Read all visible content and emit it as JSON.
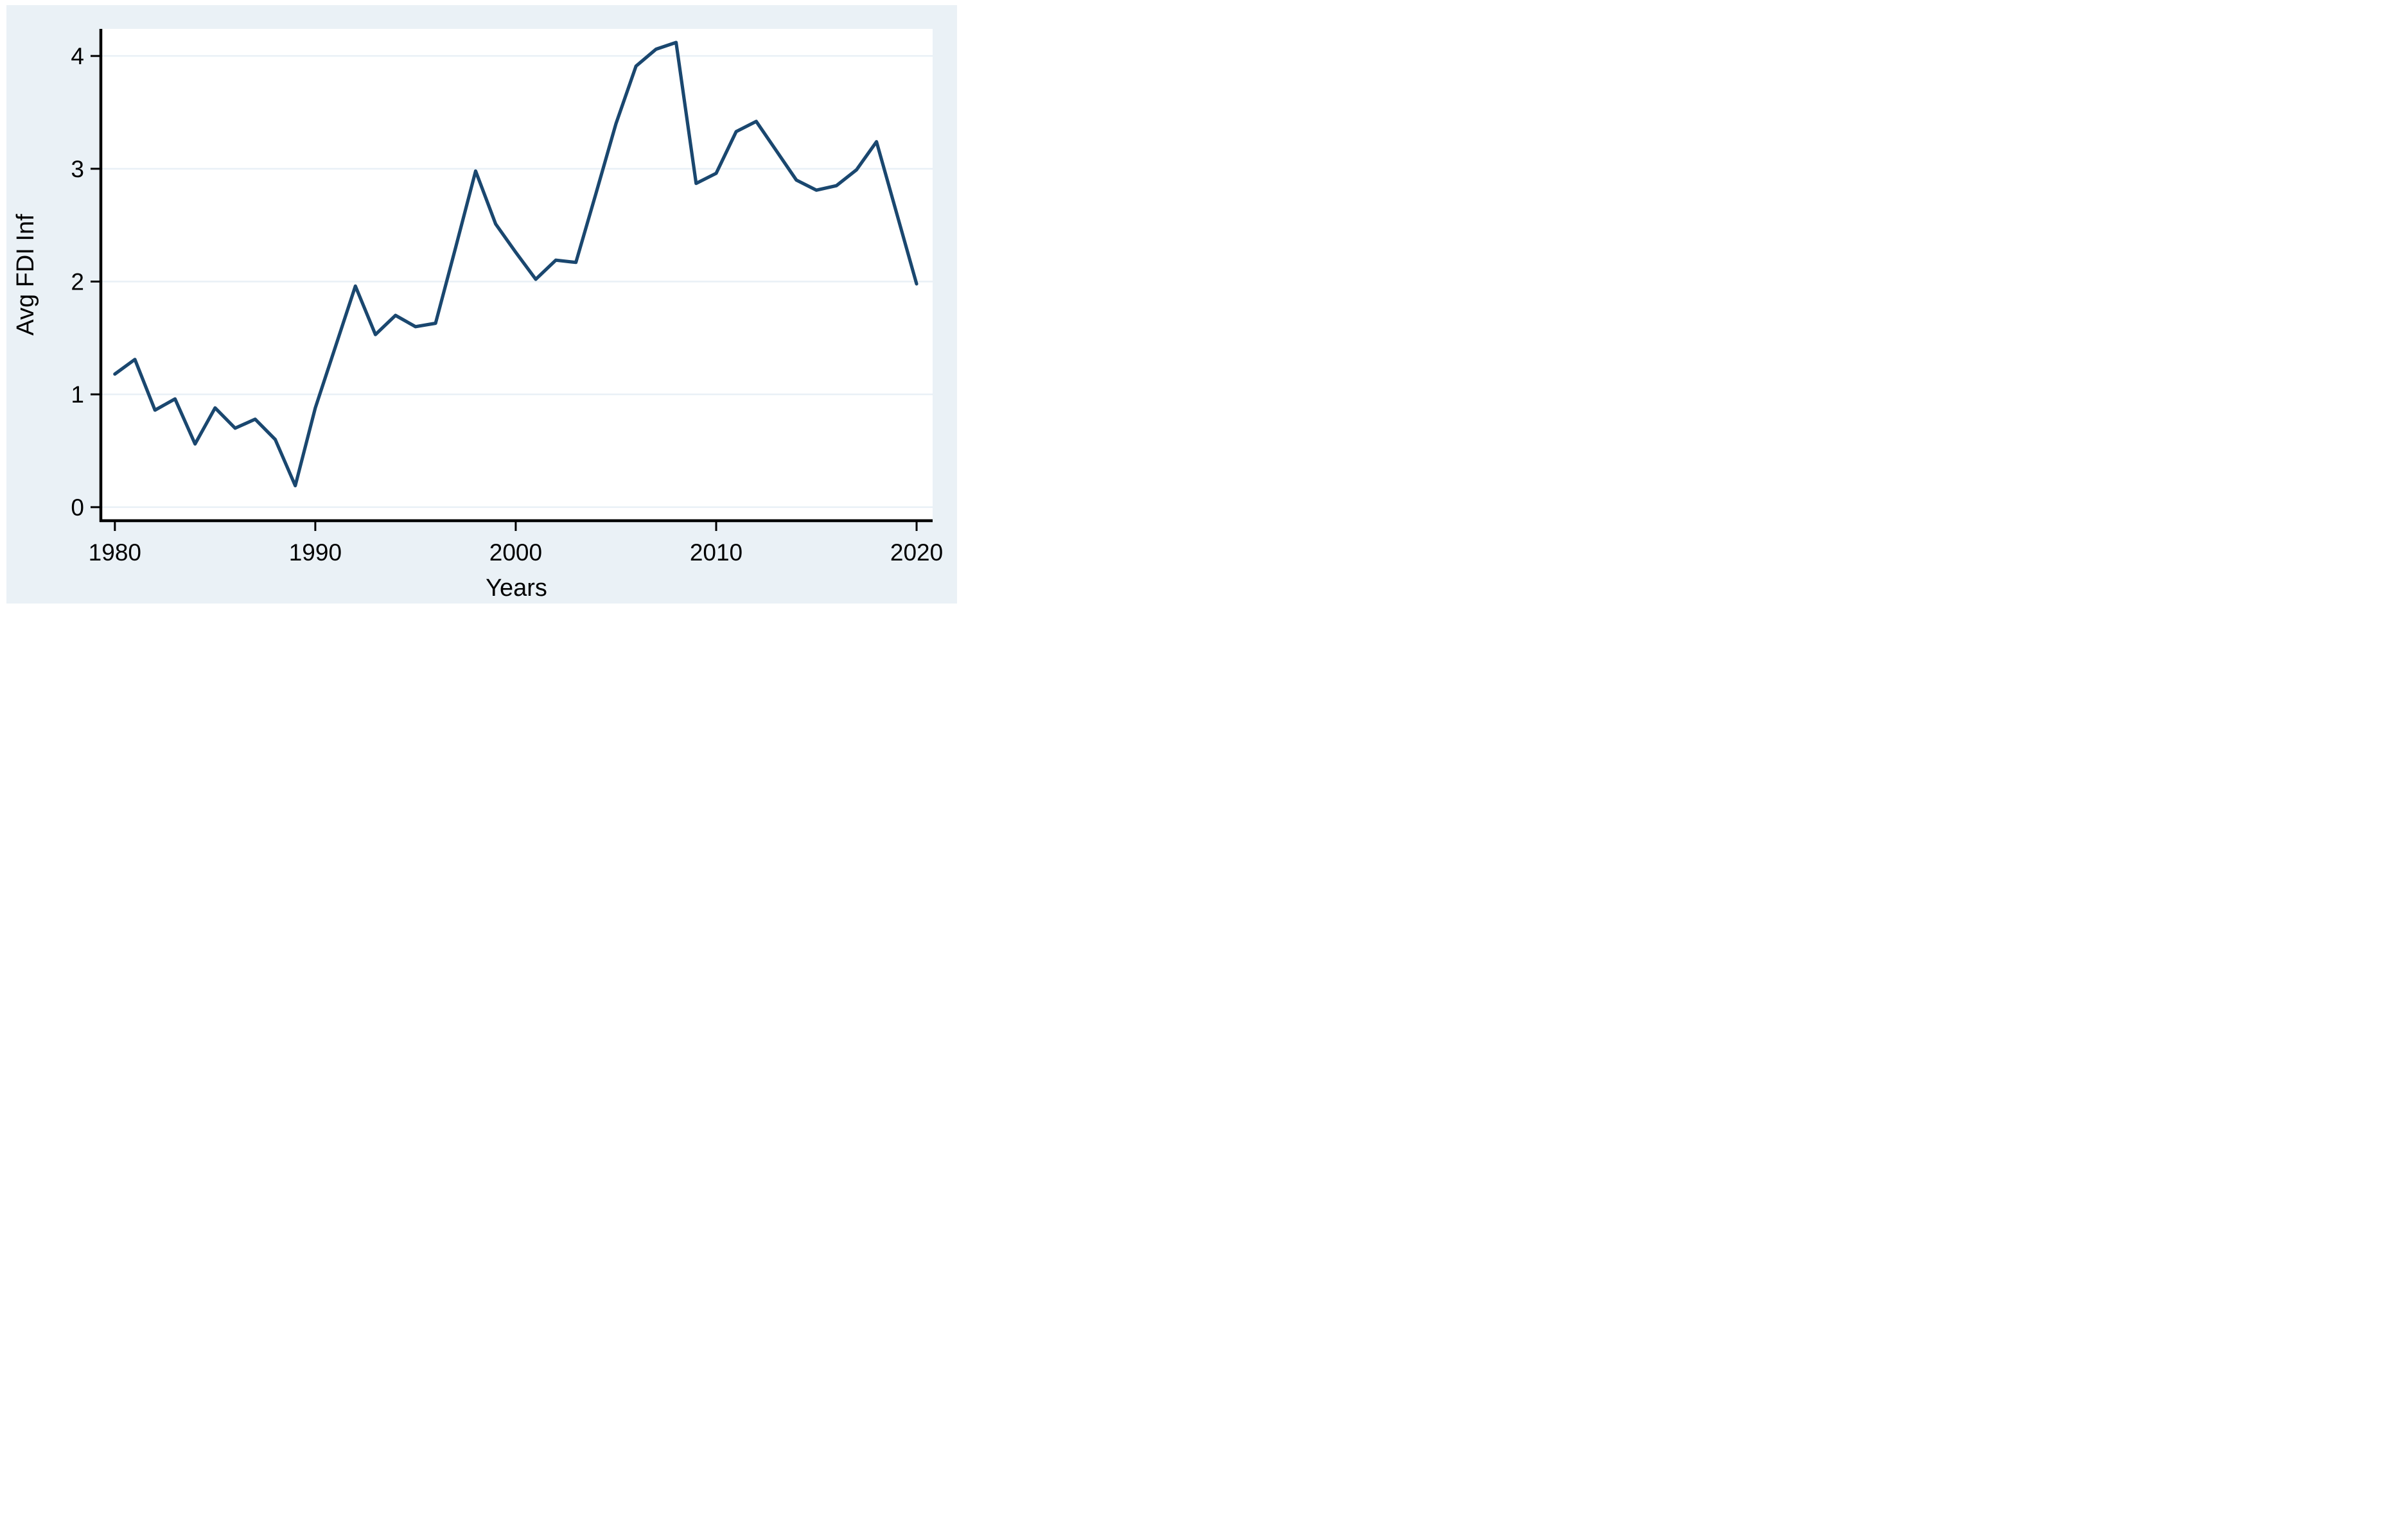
{
  "window": {
    "title": "Average FDI inflows line chart"
  },
  "chart_data": {
    "type": "line",
    "title": "",
    "xlabel": "Years",
    "ylabel": "Avg FDI Inf",
    "x": [
      1980,
      1981,
      1982,
      1983,
      1984,
      1985,
      1986,
      1987,
      1988,
      1989,
      1990,
      1991,
      1992,
      1993,
      1994,
      1995,
      1996,
      1997,
      1998,
      1999,
      2000,
      2001,
      2002,
      2003,
      2004,
      2005,
      2006,
      2007,
      2008,
      2009,
      2010,
      2011,
      2012,
      2013,
      2014,
      2015,
      2016,
      2017,
      2018,
      2019,
      2020
    ],
    "series": [
      {
        "name": "Avg FDI Inf",
        "values": [
          1.18,
          1.31,
          0.86,
          0.96,
          0.56,
          0.88,
          0.7,
          0.78,
          0.6,
          0.19,
          0.88,
          1.42,
          1.96,
          1.53,
          1.7,
          1.6,
          1.63,
          2.3,
          2.98,
          2.51,
          2.26,
          2.02,
          2.19,
          2.17,
          2.78,
          3.4,
          3.91,
          4.06,
          4.12,
          2.87,
          2.96,
          3.33,
          3.42,
          3.16,
          2.9,
          2.81,
          2.85,
          2.99,
          3.24,
          2.61,
          1.98
        ]
      }
    ],
    "xticks": [
      1980,
      1990,
      2000,
      2010,
      2020
    ],
    "yticks": [
      0,
      1,
      2,
      3,
      4
    ],
    "xtick_labels": [
      "1980",
      "1990",
      "2000",
      "2010",
      "2020"
    ],
    "ytick_labels": [
      "0",
      "1",
      "2",
      "3",
      "4"
    ],
    "xlim": [
      1979.3,
      2020.8
    ],
    "ylim": [
      -0.12,
      4.24
    ],
    "grid": "horizontal",
    "legend": "none",
    "colors": {
      "line": "#1a476f",
      "panel_background": "#eaf1f6",
      "plot_background": "#ffffff",
      "grid": "#e9f0f6",
      "axis": "#000000",
      "text": "#000000"
    }
  }
}
